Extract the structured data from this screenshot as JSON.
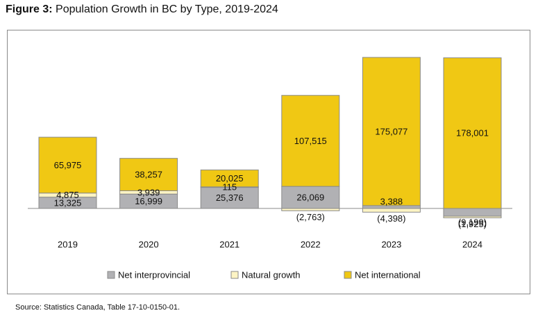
{
  "title_lead": "Figure 3:",
  "title_text": "Population Growth in BC by Type, 2019-2024",
  "source": "Source: Statistics Canada, Table 17-10-0150-01.",
  "chart_data": {
    "type": "bar",
    "stacked": true,
    "categories": [
      "2019",
      "2020",
      "2021",
      "2022",
      "2023",
      "2024"
    ],
    "series": [
      {
        "name": "Net interprovincial",
        "color": "#b1b1b4",
        "values": [
          13325,
          16999,
          25376,
          26069,
          3388,
          -9199
        ],
        "labels": [
          "13,325",
          "16,999",
          "25,376",
          "26,069",
          "3,388",
          "(9,199)"
        ]
      },
      {
        "name": "Natural growth",
        "color": "#fdf4c4",
        "values": [
          4875,
          3939,
          115,
          -2763,
          -4398,
          -1925
        ],
        "labels": [
          "4,875",
          "3,939",
          "115",
          "(2,763)",
          "(4,398)",
          "(1,925)"
        ]
      },
      {
        "name": "Net international",
        "color": "#f0c814",
        "values": [
          65975,
          38257,
          20025,
          107515,
          175077,
          178001
        ],
        "labels": [
          "65,975",
          "38,257",
          "20,025",
          "107,515",
          "175,077",
          "178,001"
        ]
      }
    ],
    "legend_position": "bottom",
    "grid": false
  }
}
